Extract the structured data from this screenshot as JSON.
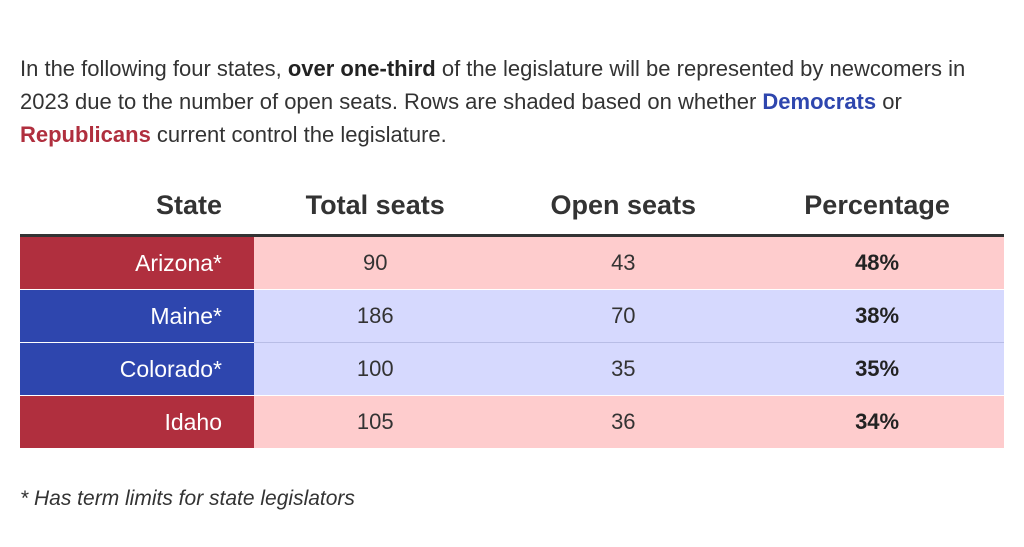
{
  "intro": {
    "part1": "In the following four states, ",
    "bold": "over one-third",
    "part2": " of the legislature will be represented by newcomers in 2023 due to the number of open seats. Rows are shaded based on whether ",
    "democrats": "Democrats",
    "part3": " or ",
    "republicans": "Republicans",
    "part4": " current control the legislature."
  },
  "table": {
    "headers": [
      "State",
      "Total seats",
      "Open seats",
      "Percentage"
    ],
    "rows": [
      {
        "state": "Arizona*",
        "total": "90",
        "open": "43",
        "pct": "48%",
        "party": "R"
      },
      {
        "state": "Maine*",
        "total": "186",
        "open": "70",
        "pct": "38%",
        "party": "D"
      },
      {
        "state": "Colorado*",
        "total": "100",
        "open": "35",
        "pct": "35%",
        "party": "D"
      },
      {
        "state": "Idaho",
        "total": "105",
        "open": "36",
        "pct": "34%",
        "party": "R"
      }
    ]
  },
  "colors": {
    "republican_dark": "#b02f3e",
    "republican_light": "#fecccd",
    "democrat_dark": "#2e46ae",
    "democrat_light": "#d6d9fe"
  },
  "footnote": "* Has term limits for state legislators"
}
